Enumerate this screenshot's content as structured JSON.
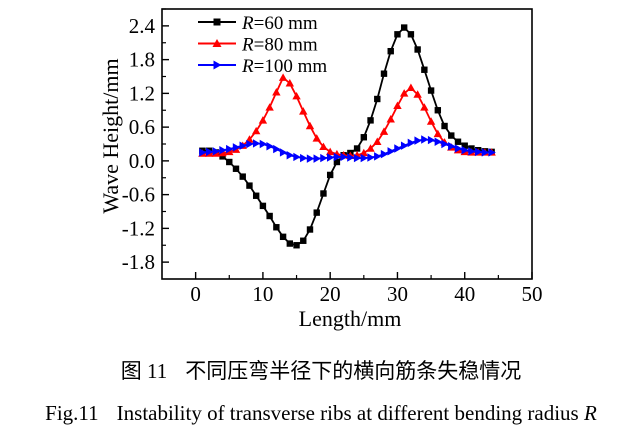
{
  "chart_data": {
    "type": "line",
    "title": "",
    "xlabel": "Length/mm",
    "ylabel": "Wave Height/mm",
    "xlim": [
      -5,
      50
    ],
    "ylim": [
      -2.1,
      2.7
    ],
    "xticks": [
      0,
      10,
      20,
      30,
      40,
      50
    ],
    "yticks": [
      -1.8,
      -1.2,
      -0.6,
      0.0,
      0.6,
      1.2,
      1.8,
      2.4
    ],
    "x_minor_step": 5,
    "y_minor_step": 0.3,
    "grid": false,
    "legend_position": "top-left",
    "x": [
      1,
      2,
      3,
      4,
      5,
      6,
      7,
      8,
      9,
      10,
      11,
      12,
      13,
      14,
      15,
      16,
      17,
      18,
      19,
      20,
      21,
      22,
      23,
      24,
      25,
      26,
      27,
      28,
      29,
      30,
      31,
      32,
      33,
      34,
      35,
      36,
      37,
      38,
      39,
      40,
      41,
      42,
      43,
      44
    ],
    "series": [
      {
        "name_prefix": "R",
        "name_rest": "=60 mm",
        "color": "#000000",
        "marker": "square",
        "values": [
          0.18,
          0.18,
          0.15,
          0.08,
          -0.02,
          -0.14,
          -0.28,
          -0.44,
          -0.62,
          -0.8,
          -0.98,
          -1.18,
          -1.35,
          -1.47,
          -1.5,
          -1.42,
          -1.22,
          -0.92,
          -0.58,
          -0.25,
          -0.02,
          0.1,
          0.14,
          0.22,
          0.42,
          0.72,
          1.1,
          1.55,
          1.95,
          2.25,
          2.37,
          2.25,
          1.98,
          1.62,
          1.25,
          0.9,
          0.62,
          0.45,
          0.34,
          0.27,
          0.22,
          0.19,
          0.17,
          0.16
        ]
      },
      {
        "name_prefix": "R",
        "name_rest": "=80 mm",
        "color": "#ff0000",
        "marker": "triangle-up",
        "values": [
          0.13,
          0.13,
          0.13,
          0.14,
          0.16,
          0.2,
          0.27,
          0.38,
          0.53,
          0.72,
          0.95,
          1.22,
          1.48,
          1.38,
          1.15,
          0.88,
          0.62,
          0.4,
          0.25,
          0.16,
          0.12,
          0.1,
          0.09,
          0.1,
          0.14,
          0.22,
          0.34,
          0.52,
          0.74,
          0.98,
          1.2,
          1.3,
          1.18,
          0.95,
          0.7,
          0.48,
          0.33,
          0.24,
          0.19,
          0.16,
          0.15,
          0.15,
          0.15,
          0.15
        ]
      },
      {
        "name_prefix": "R",
        "name_rest": "=100 mm",
        "color": "#0000ff",
        "marker": "triangle-right",
        "values": [
          0.15,
          0.16,
          0.17,
          0.19,
          0.21,
          0.24,
          0.27,
          0.3,
          0.31,
          0.3,
          0.26,
          0.21,
          0.15,
          0.1,
          0.07,
          0.05,
          0.04,
          0.04,
          0.05,
          0.06,
          0.07,
          0.07,
          0.06,
          0.05,
          0.05,
          0.06,
          0.08,
          0.12,
          0.17,
          0.22,
          0.27,
          0.32,
          0.36,
          0.38,
          0.37,
          0.34,
          0.3,
          0.26,
          0.22,
          0.19,
          0.17,
          0.16,
          0.15,
          0.15
        ]
      }
    ]
  },
  "captions": {
    "zh_label": "图 11",
    "zh_text": "不同压弯半径下的横向筋条失稳情况",
    "en_label": "Fig.11",
    "en_text": "Instability of transverse ribs at different bending radius",
    "en_var": "R"
  }
}
